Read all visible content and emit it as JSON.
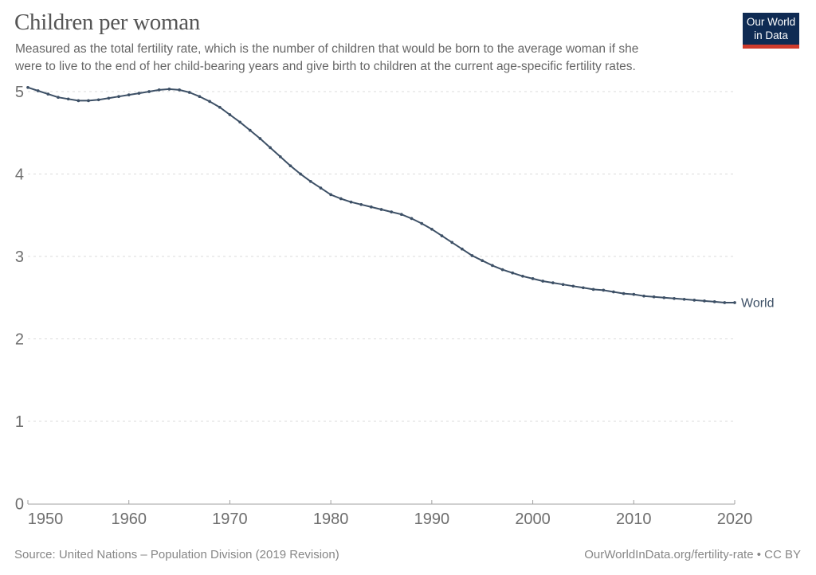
{
  "header": {
    "title": "Children per woman",
    "subtitle_lines": [
      "Measured as the total fertility rate, which is the number of children that would be born to the average woman if she",
      "were to live to the end of her child-bearing years and give birth to children at the current age-specific fertility rates."
    ]
  },
  "logo": {
    "line1": "Our World",
    "line2": "in Data",
    "bg_color": "#0f2b53",
    "bar_color": "#cf3b2c"
  },
  "chart_data": {
    "type": "line",
    "title": "Children per woman",
    "xlabel": "",
    "ylabel": "",
    "xlim": [
      1950,
      2020
    ],
    "ylim": [
      0,
      5
    ],
    "x_ticks": [
      1950,
      1960,
      1970,
      1980,
      1990,
      2000,
      2010,
      2020
    ],
    "y_ticks": [
      0,
      1,
      2,
      3,
      4,
      5
    ],
    "grid": "dashed-horizontal",
    "legend_position": "end-of-line-label",
    "end_label": "World",
    "series": [
      {
        "name": "World",
        "color": "#3d5066",
        "points": [
          [
            1950,
            5.05
          ],
          [
            1951,
            5.01
          ],
          [
            1952,
            4.97
          ],
          [
            1953,
            4.93
          ],
          [
            1954,
            4.91
          ],
          [
            1955,
            4.89
          ],
          [
            1956,
            4.89
          ],
          [
            1957,
            4.9
          ],
          [
            1958,
            4.92
          ],
          [
            1959,
            4.94
          ],
          [
            1960,
            4.96
          ],
          [
            1961,
            4.98
          ],
          [
            1962,
            5.0
          ],
          [
            1963,
            5.02
          ],
          [
            1964,
            5.03
          ],
          [
            1965,
            5.02
          ],
          [
            1966,
            4.99
          ],
          [
            1967,
            4.94
          ],
          [
            1968,
            4.88
          ],
          [
            1969,
            4.81
          ],
          [
            1970,
            4.72
          ],
          [
            1971,
            4.63
          ],
          [
            1972,
            4.53
          ],
          [
            1973,
            4.43
          ],
          [
            1974,
            4.32
          ],
          [
            1975,
            4.21
          ],
          [
            1976,
            4.1
          ],
          [
            1977,
            4.0
          ],
          [
            1978,
            3.91
          ],
          [
            1979,
            3.83
          ],
          [
            1980,
            3.75
          ],
          [
            1981,
            3.7
          ],
          [
            1982,
            3.66
          ],
          [
            1983,
            3.63
          ],
          [
            1984,
            3.6
          ],
          [
            1985,
            3.57
          ],
          [
            1986,
            3.54
          ],
          [
            1987,
            3.51
          ],
          [
            1988,
            3.46
          ],
          [
            1989,
            3.4
          ],
          [
            1990,
            3.33
          ],
          [
            1991,
            3.25
          ],
          [
            1992,
            3.17
          ],
          [
            1993,
            3.09
          ],
          [
            1994,
            3.01
          ],
          [
            1995,
            2.95
          ],
          [
            1996,
            2.89
          ],
          [
            1997,
            2.84
          ],
          [
            1998,
            2.8
          ],
          [
            1999,
            2.76
          ],
          [
            2000,
            2.73
          ],
          [
            2001,
            2.7
          ],
          [
            2002,
            2.68
          ],
          [
            2003,
            2.66
          ],
          [
            2004,
            2.64
          ],
          [
            2005,
            2.62
          ],
          [
            2006,
            2.6
          ],
          [
            2007,
            2.59
          ],
          [
            2008,
            2.57
          ],
          [
            2009,
            2.55
          ],
          [
            2010,
            2.54
          ],
          [
            2011,
            2.52
          ],
          [
            2012,
            2.51
          ],
          [
            2013,
            2.5
          ],
          [
            2014,
            2.49
          ],
          [
            2015,
            2.48
          ],
          [
            2016,
            2.47
          ],
          [
            2017,
            2.46
          ],
          [
            2018,
            2.45
          ],
          [
            2019,
            2.44
          ],
          [
            2020,
            2.44
          ]
        ]
      }
    ]
  },
  "footer": {
    "source": "Source: United Nations – Population Division (2019 Revision)",
    "attribution": "OurWorldInData.org/fertility-rate • CC BY"
  },
  "colors": {
    "line": "#3d5066",
    "grid": "#dbdbdb",
    "axis": "#a0a0a0",
    "tick_label": "#6e6e6e",
    "title_text": "#555555",
    "subtitle_text": "#666666",
    "footer_text": "#878787"
  }
}
